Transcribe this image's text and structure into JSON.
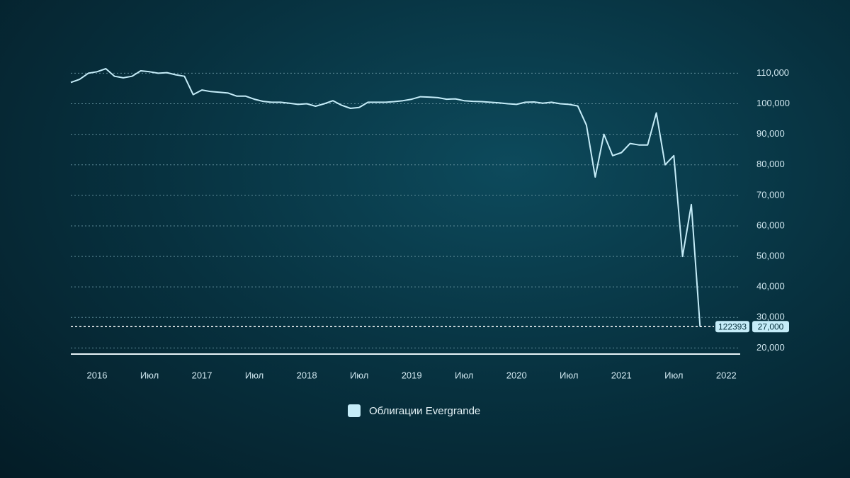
{
  "chart_data": {
    "type": "line",
    "x": [
      "2015-10",
      "2015-11",
      "2015-12",
      "2016-01",
      "2016-02",
      "2016-03",
      "2016-04",
      "2016-05",
      "2016-06",
      "2016-07",
      "2016-08",
      "2016-09",
      "2016-10",
      "2016-11",
      "2016-12",
      "2017-01",
      "2017-02",
      "2017-03",
      "2017-04",
      "2017-05",
      "2017-06",
      "2017-07",
      "2017-08",
      "2017-09",
      "2017-10",
      "2017-11",
      "2017-12",
      "2018-01",
      "2018-02",
      "2018-03",
      "2018-04",
      "2018-05",
      "2018-06",
      "2018-07",
      "2018-08",
      "2018-09",
      "2018-10",
      "2018-11",
      "2018-12",
      "2019-01",
      "2019-02",
      "2019-03",
      "2019-04",
      "2019-05",
      "2019-06",
      "2019-07",
      "2019-08",
      "2019-09",
      "2019-10",
      "2019-11",
      "2019-12",
      "2020-01",
      "2020-02",
      "2020-03",
      "2020-04",
      "2020-05",
      "2020-06",
      "2020-07",
      "2020-08",
      "2020-09",
      "2020-10",
      "2020-11",
      "2020-12",
      "2021-01",
      "2021-02",
      "2021-03",
      "2021-04",
      "2021-05",
      "2021-06",
      "2021-07",
      "2021-08",
      "2021-09",
      "2021-10"
    ],
    "series": [
      {
        "name": "Облигации Evergrande",
        "color": "#c5ecf8",
        "values": [
          107000,
          108000,
          110000,
          110500,
          111500,
          109000,
          108500,
          109000,
          110800,
          110500,
          110000,
          110200,
          109500,
          109000,
          103000,
          104500,
          104000,
          103800,
          103500,
          102500,
          102500,
          101500,
          100800,
          100500,
          100500,
          100200,
          99800,
          100000,
          99200,
          100000,
          101000,
          99500,
          98500,
          98800,
          100500,
          100500,
          100500,
          100700,
          101000,
          101500,
          102300,
          102200,
          102000,
          101500,
          101600,
          101000,
          100800,
          100700,
          100500,
          100300,
          100000,
          99800,
          100500,
          100600,
          100200,
          100500,
          100000,
          99800,
          99300,
          93000,
          76000,
          90000,
          83000,
          84000,
          87000,
          86500,
          86500,
          97000,
          80000,
          83000,
          50000,
          67000,
          27000
        ]
      }
    ],
    "xlim": [
      "2015-10",
      "2022-03"
    ],
    "xticks": [
      {
        "value": "2016-01",
        "label": "2016"
      },
      {
        "value": "2016-07",
        "label": "Июл"
      },
      {
        "value": "2017-01",
        "label": "2017"
      },
      {
        "value": "2017-07",
        "label": "Июл"
      },
      {
        "value": "2018-01",
        "label": "2018"
      },
      {
        "value": "2018-07",
        "label": "Июл"
      },
      {
        "value": "2019-01",
        "label": "2019"
      },
      {
        "value": "2019-07",
        "label": "Июл"
      },
      {
        "value": "2020-01",
        "label": "2020"
      },
      {
        "value": "2020-07",
        "label": "Июл"
      },
      {
        "value": "2021-01",
        "label": "2021"
      },
      {
        "value": "2021-07",
        "label": "Июл"
      },
      {
        "value": "2022-01",
        "label": "2022"
      }
    ],
    "ylim": [
      18000,
      113000
    ],
    "yticks": [
      {
        "value": 20000,
        "label": "20,000"
      },
      {
        "value": 30000,
        "label": "30,000"
      },
      {
        "value": 40000,
        "label": "40,000"
      },
      {
        "value": 50000,
        "label": "50,000"
      },
      {
        "value": 60000,
        "label": "60,000"
      },
      {
        "value": 70000,
        "label": "70,000"
      },
      {
        "value": 80000,
        "label": "80,000"
      },
      {
        "value": 90000,
        "label": "90,000"
      },
      {
        "value": 100000,
        "label": "100,000"
      },
      {
        "value": 110000,
        "label": "110,000"
      }
    ],
    "reference_line": {
      "value": 27000,
      "label": "27,000",
      "annotation": "122393"
    },
    "grid": true,
    "legend": "bottom"
  }
}
